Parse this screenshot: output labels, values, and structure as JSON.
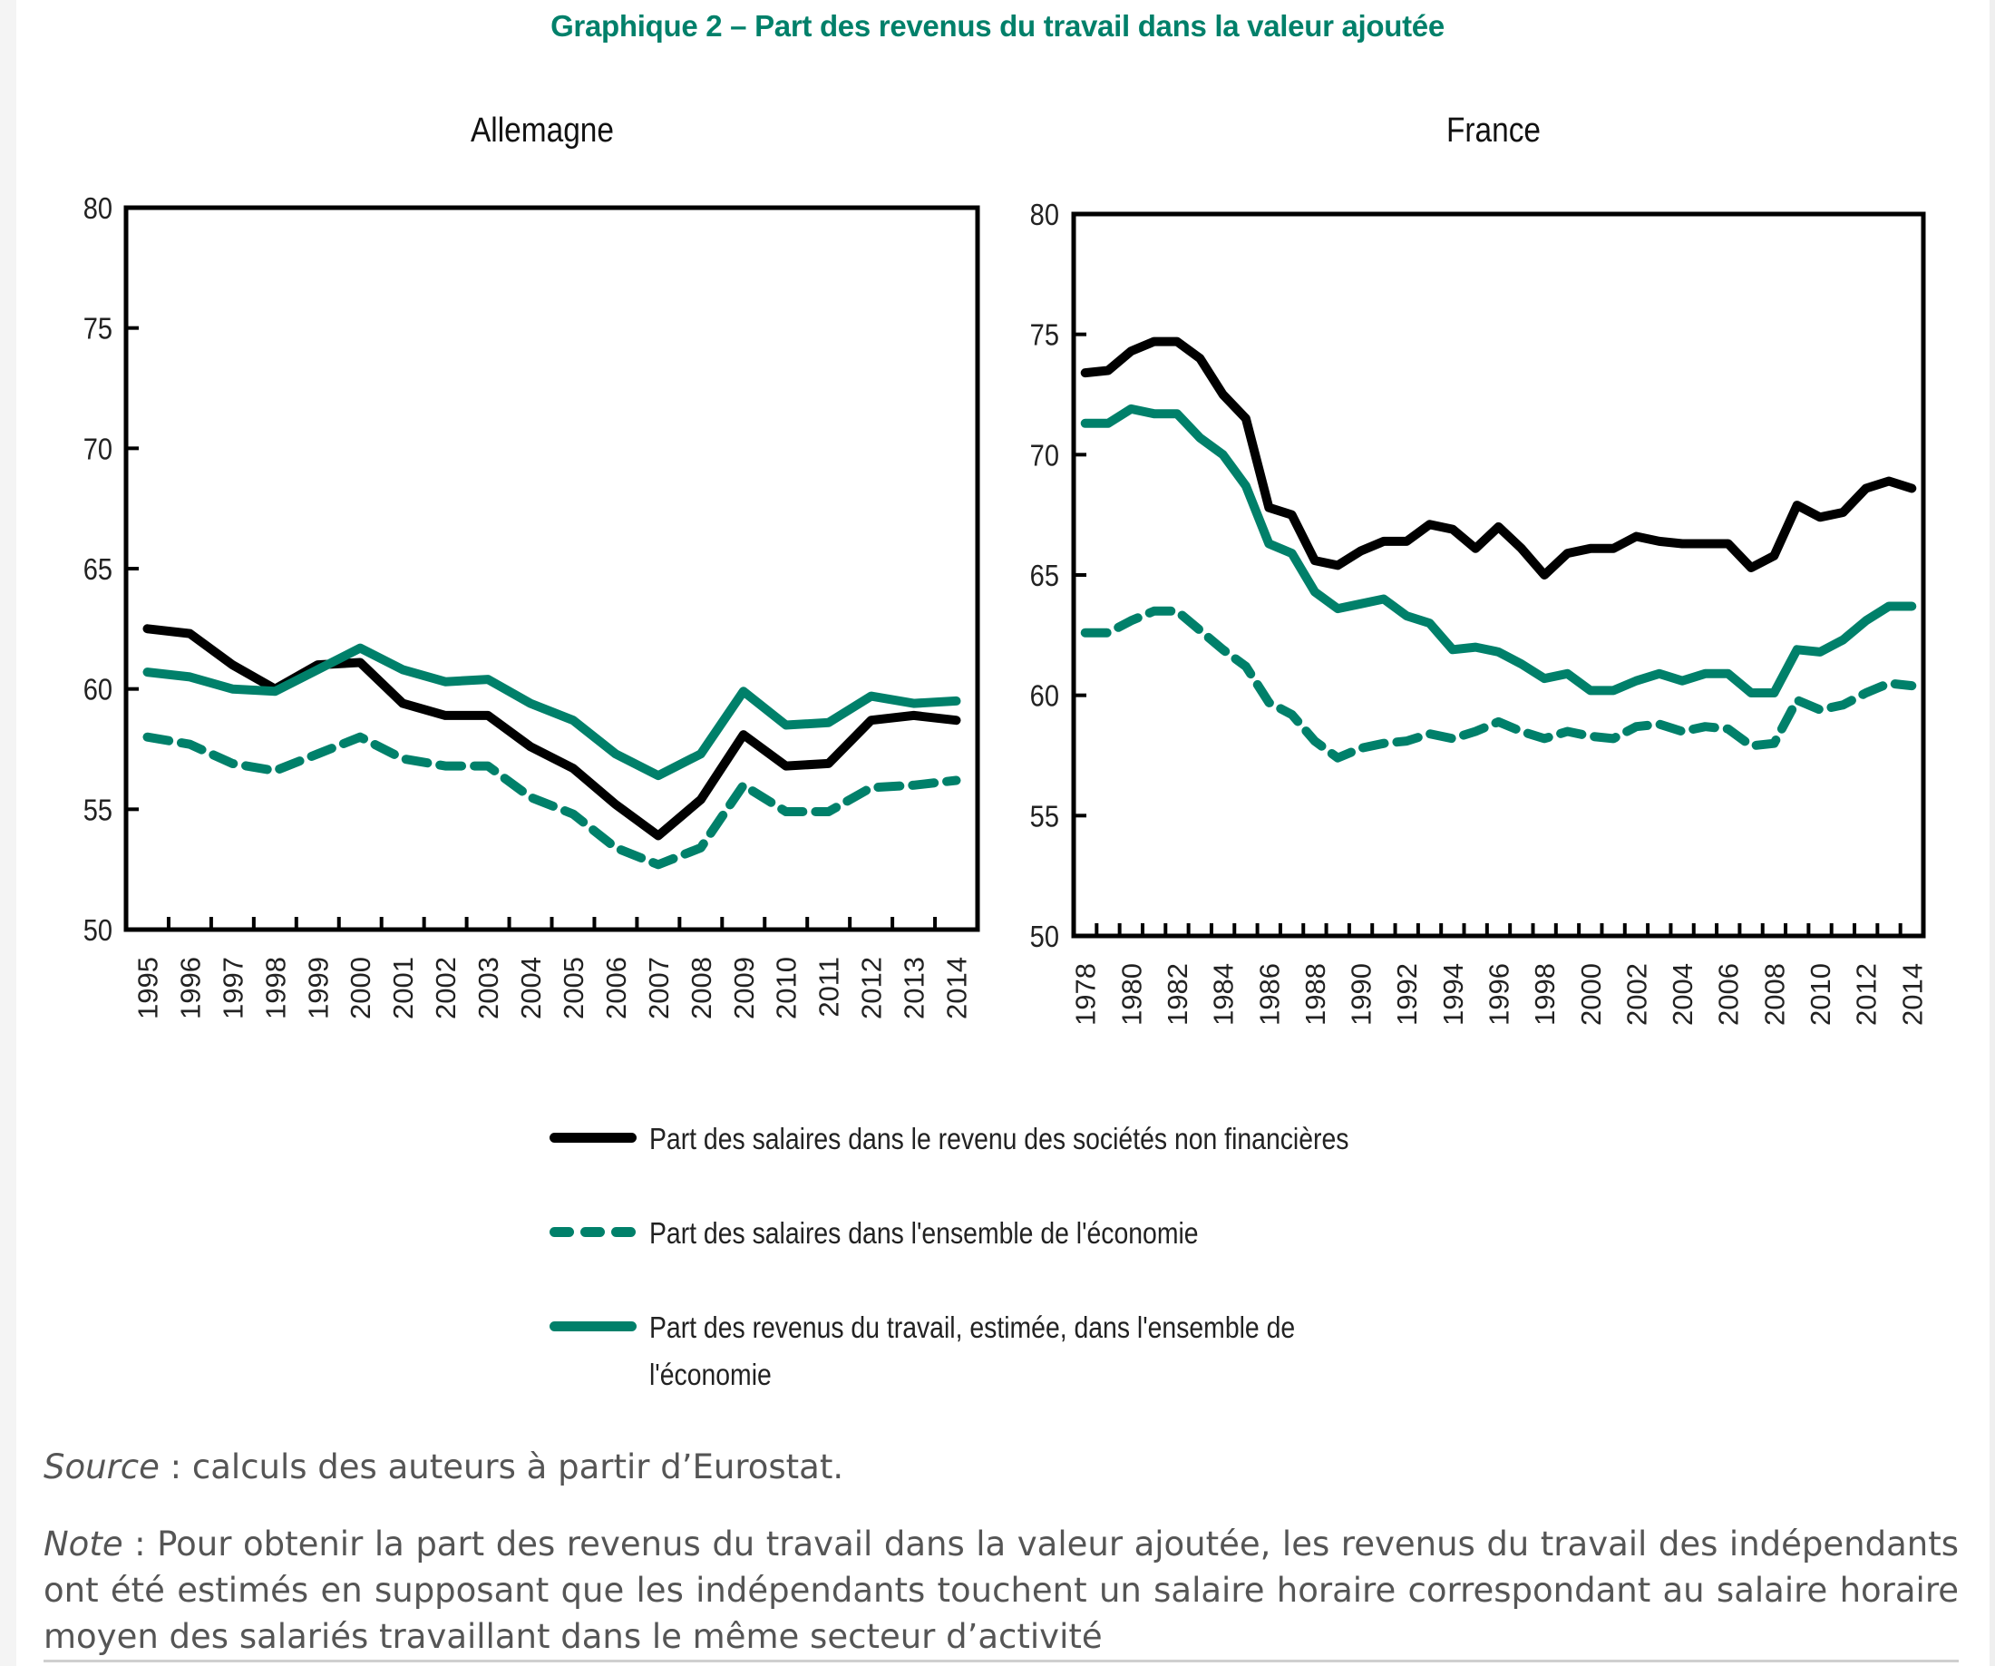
{
  "title": "Graphique 2 – Part des revenus du travail dans la valeur ajoutée",
  "colors": {
    "black_series": "#000000",
    "green": "#00806a",
    "text": "#222222",
    "footer_text": "#555555"
  },
  "legend": [
    {
      "key": "salaires_snf",
      "label": "Part des salaires dans le revenu des sociétés non financières",
      "style": "solid-black"
    },
    {
      "key": "salaires_eco",
      "label": "Part des salaires dans l'ensemble de l'économie",
      "style": "dashed-green"
    },
    {
      "key": "revenus_travail",
      "label": "Part des revenus du travail, estimée,  dans l'ensemble de l'économie",
      "style": "solid-green"
    }
  ],
  "footer": {
    "source_label": "Source",
    "source_text": " : calculs des auteurs à partir d’Eurostat.",
    "note_label": "Note",
    "note_text": " : Pour obtenir la part des revenus du travail dans la valeur ajoutée, les revenus du travail des indépendants ont été estimés en supposant que les indépendants touchent un salaire horaire correspondant au salaire horaire moyen des salariés travaillant dans le même secteur d’activité"
  },
  "chart_data": [
    {
      "type": "line",
      "title": "Allemagne",
      "xlabel": "",
      "ylabel": "",
      "ylim": [
        50,
        80
      ],
      "yticks": [
        50,
        55,
        60,
        65,
        70,
        75,
        80
      ],
      "grid": false,
      "categories": [
        "1995",
        "1996",
        "1997",
        "1998",
        "1999",
        "2000",
        "2001",
        "2002",
        "2003",
        "2004",
        "2005",
        "2006",
        "2007",
        "2008",
        "2009",
        "2010",
        "2011",
        "2012",
        "2013",
        "2014"
      ],
      "series": [
        {
          "name": "Part des salaires dans le revenu des sociétés non financières",
          "values": [
            62.5,
            62.3,
            61.0,
            60.0,
            61.0,
            61.1,
            59.4,
            58.9,
            58.9,
            57.6,
            56.7,
            55.2,
            53.9,
            55.4,
            58.1,
            56.8,
            56.9,
            58.7,
            58.9,
            58.7
          ]
        },
        {
          "name": "Part des salaires dans l'ensemble de l'économie",
          "values": [
            58.0,
            57.7,
            56.9,
            56.6,
            57.3,
            58.0,
            57.1,
            56.8,
            56.8,
            55.5,
            54.8,
            53.4,
            52.7,
            53.4,
            56.0,
            54.9,
            54.9,
            55.9,
            56.0,
            56.2
          ]
        },
        {
          "name": "Part des revenus du travail, estimée,  dans l'ensemble de l'économie",
          "values": [
            60.7,
            60.5,
            60.0,
            59.9,
            60.8,
            61.7,
            60.8,
            60.3,
            60.4,
            59.4,
            58.7,
            57.3,
            56.4,
            57.3,
            59.9,
            58.5,
            58.6,
            59.7,
            59.4,
            59.5
          ]
        }
      ]
    },
    {
      "type": "line",
      "title": "France",
      "xlabel": "",
      "ylabel": "",
      "ylim": [
        50,
        80
      ],
      "yticks": [
        50,
        55,
        60,
        65,
        70,
        75,
        80
      ],
      "grid": false,
      "categories": [
        "1978",
        "1979",
        "1980",
        "1981",
        "1982",
        "1983",
        "1984",
        "1985",
        "1986",
        "1987",
        "1988",
        "1989",
        "1990",
        "1991",
        "1992",
        "1993",
        "1994",
        "1995",
        "1996",
        "1997",
        "1998",
        "1999",
        "2000",
        "2001",
        "2002",
        "2003",
        "2004",
        "2005",
        "2006",
        "2007",
        "2008",
        "2009",
        "2010",
        "2011",
        "2012",
        "2013",
        "2014"
      ],
      "tick_labels": [
        "1978",
        "1980",
        "1982",
        "1984",
        "1986",
        "1988",
        "1990",
        "1992",
        "1994",
        "1996",
        "1998",
        "2000",
        "2002",
        "2004",
        "2006",
        "2008",
        "2010",
        "2012",
        "2014"
      ],
      "series": [
        {
          "name": "Part des salaires dans le revenu des sociétés non financières",
          "values": [
            73.4,
            73.5,
            74.3,
            74.7,
            74.7,
            74.0,
            72.5,
            71.5,
            67.8,
            67.5,
            65.6,
            65.4,
            66.0,
            66.4,
            66.4,
            67.1,
            66.9,
            66.1,
            67.0,
            66.1,
            65.0,
            65.9,
            66.1,
            66.1,
            66.6,
            66.4,
            66.3,
            66.3,
            66.3,
            65.3,
            65.8,
            67.9,
            67.4,
            67.6,
            68.6,
            68.9,
            68.6
          ]
        },
        {
          "name": "Part des salaires dans l'ensemble de l'économie",
          "values": [
            62.6,
            62.6,
            63.1,
            63.5,
            63.5,
            62.7,
            61.9,
            61.2,
            59.7,
            59.2,
            58.1,
            57.4,
            57.8,
            58.0,
            58.1,
            58.4,
            58.2,
            58.5,
            58.9,
            58.5,
            58.2,
            58.5,
            58.3,
            58.2,
            58.7,
            58.8,
            58.5,
            58.7,
            58.6,
            57.9,
            58.0,
            59.8,
            59.4,
            59.6,
            60.1,
            60.5,
            60.4
          ]
        },
        {
          "name": "Part des revenus du travail, estimée,  dans l'ensemble de l'économie",
          "values": [
            71.3,
            71.3,
            71.9,
            71.7,
            71.7,
            70.7,
            70.0,
            68.7,
            66.3,
            65.9,
            64.3,
            63.6,
            63.8,
            64.0,
            63.3,
            63.0,
            61.9,
            62.0,
            61.8,
            61.3,
            60.7,
            60.9,
            60.2,
            60.2,
            60.6,
            60.9,
            60.6,
            60.9,
            60.9,
            60.1,
            60.1,
            61.9,
            61.8,
            62.3,
            63.1,
            63.7,
            63.7
          ]
        }
      ]
    }
  ]
}
